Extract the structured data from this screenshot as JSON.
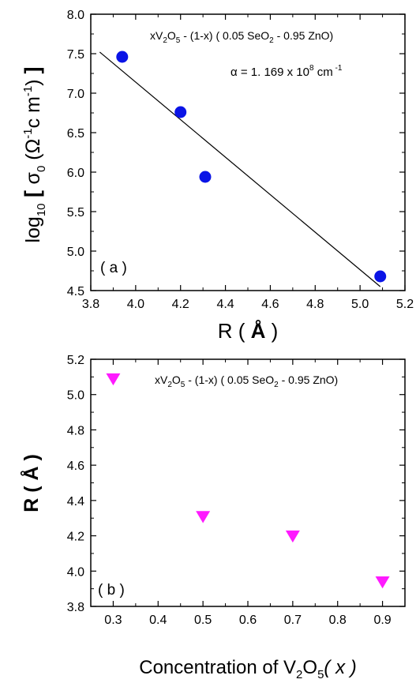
{
  "chart_data": [
    {
      "type": "scatter",
      "panel_label": "( a )",
      "xlabel": "R",
      "xunit": "Å",
      "ylabel": "log10 [ σ0 (Ω−1 cm−1) ]",
      "ylabel_parts": {
        "pre": "log",
        "pre_sub": "10",
        "sigma": "σ",
        "sigma_sub": "0",
        "omega": "Ω",
        "omega_sup": "-1",
        "cm": "c m",
        "cm_sup": "-1"
      },
      "xlim": [
        3.8,
        5.2
      ],
      "ylim": [
        4.5,
        8.0
      ],
      "xticks": [
        "3.8",
        "4.0",
        "4.2",
        "4.4",
        "4.6",
        "4.8",
        "5.0",
        "5.2"
      ],
      "yticks": [
        "4.5",
        "5.0",
        "5.5",
        "6.0",
        "6.5",
        "7.0",
        "7.5",
        "8.0"
      ],
      "series": [
        {
          "marker": "circle",
          "color": "#0a14e6",
          "points": [
            {
              "x": 3.94,
              "y": 7.46
            },
            {
              "x": 4.2,
              "y": 6.76
            },
            {
              "x": 4.31,
              "y": 5.94
            },
            {
              "x": 5.09,
              "y": 4.68
            }
          ]
        }
      ],
      "fit_line": {
        "x": [
          3.84,
          5.09
        ],
        "y": [
          7.52,
          4.55
        ],
        "color": "#000000"
      },
      "composition": {
        "base": "xV",
        "sub1": "2",
        "o": "O",
        "sub2": "5",
        "mid": " - (1-x) ( 0.05 SeO",
        "sub3": "2",
        "tail": " - 0.95 ZnO)"
      },
      "alpha_text": {
        "pre": "α  = 1. 169 x 10",
        "sup": "8",
        "post": " cm",
        "post_sup": " -1"
      },
      "grid": false
    },
    {
      "type": "scatter",
      "panel_label": "( b )",
      "xlabel": "Concentration of V",
      "xlabel_parts": {
        "sub1": "2",
        "o": "O",
        "sub2": "5",
        "paren": "( x )"
      },
      "ylabel": "R ( Å )",
      "xlim": [
        0.25,
        0.95
      ],
      "ylim": [
        3.8,
        5.2
      ],
      "xticks": [
        "0.3",
        "0.4",
        "0.5",
        "0.6",
        "0.7",
        "0.8",
        "0.9"
      ],
      "yticks": [
        "3.8",
        "4.0",
        "4.2",
        "4.4",
        "4.6",
        "4.8",
        "5.0",
        "5.2"
      ],
      "series": [
        {
          "marker": "triangle-down",
          "color": "#ff1aff",
          "points": [
            {
              "x": 0.3,
              "y": 5.09
            },
            {
              "x": 0.5,
              "y": 4.31
            },
            {
              "x": 0.7,
              "y": 4.2
            },
            {
              "x": 0.9,
              "y": 3.94
            }
          ]
        }
      ],
      "composition": {
        "base": "xV",
        "sub1": "2",
        "o": "O",
        "sub2": "5",
        "mid": " - (1-x) ( 0.05 SeO",
        "sub3": "2",
        "tail": " - 0.95 ZnO)"
      },
      "grid": false
    }
  ]
}
